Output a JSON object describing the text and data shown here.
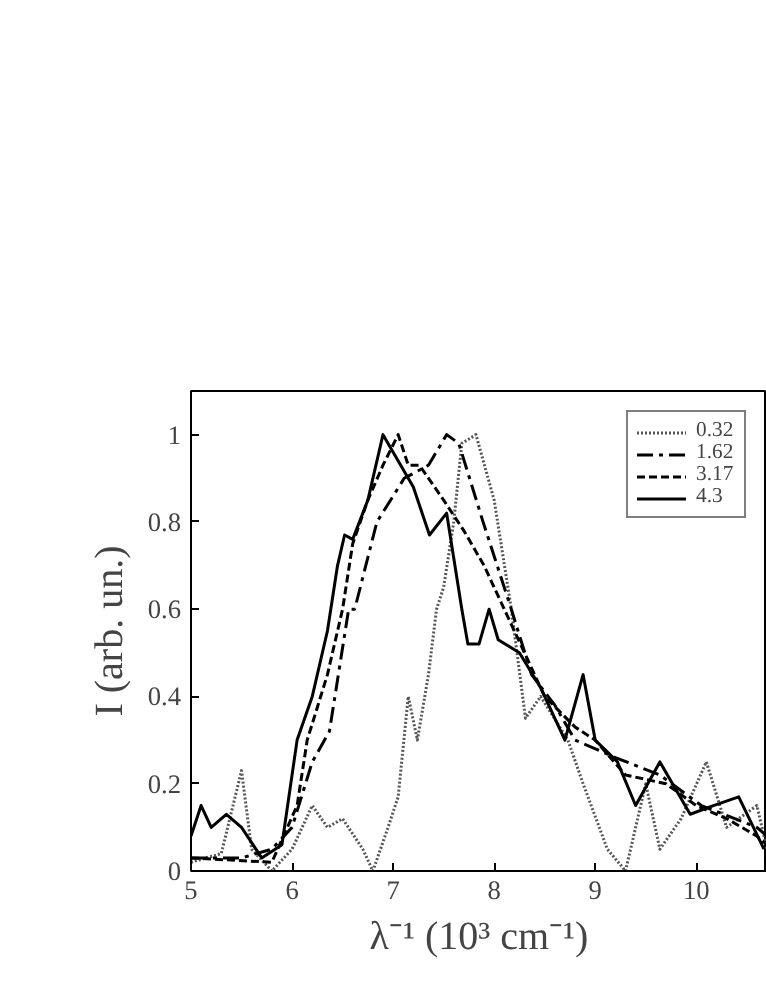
{
  "chart_data": {
    "type": "line",
    "xlabel": "λ⁻¹ (10³ cm⁻¹)",
    "ylabel": "I (arb. un.)",
    "xlim": [
      5,
      10.7
    ],
    "xticks": [
      5,
      6,
      7,
      8,
      9,
      10
    ],
    "ylim": [
      0,
      1.1
    ],
    "yticks": [
      0,
      0.2,
      0.4,
      0.6,
      0.8,
      1
    ],
    "grid": false,
    "legend": "top right",
    "marker": "none",
    "series": [
      {
        "name": "0.32",
        "color": "#555555",
        "line_style": "dotted",
        "x": [
          5,
          5.3,
          5.5,
          5.6,
          5.8,
          6.0,
          6.2,
          6.35,
          6.5,
          6.7,
          6.8,
          6.95,
          7.05,
          7.15,
          7.24,
          7.35,
          7.43,
          7.5,
          7.6,
          7.68,
          7.82,
          8.0,
          8.17,
          8.31,
          8.46,
          8.73,
          8.88,
          9.12,
          9.3,
          9.5,
          9.64,
          9.85,
          10.1,
          10.3,
          10.6,
          10.7
        ],
        "values": [
          0.02,
          0.04,
          0.23,
          0.05,
          0.0,
          0.05,
          0.15,
          0.1,
          0.12,
          0.05,
          0.0,
          0.1,
          0.17,
          0.4,
          0.3,
          0.45,
          0.6,
          0.65,
          0.8,
          0.98,
          1.0,
          0.85,
          0.6,
          0.35,
          0.4,
          0.3,
          0.2,
          0.05,
          0.0,
          0.2,
          0.05,
          0.12,
          0.25,
          0.1,
          0.15,
          0.05
        ]
      },
      {
        "name": "1.62",
        "color": "#000000",
        "line_style": "dashdot",
        "x": [
          5,
          5.5,
          5.8,
          6.0,
          6.2,
          6.37,
          6.56,
          6.62,
          6.84,
          7.11,
          7.35,
          7.53,
          7.65,
          7.89,
          8.17,
          8.37,
          8.6,
          8.8,
          9.2,
          9.64,
          10.05,
          10.6,
          10.7
        ],
        "values": [
          0.03,
          0.03,
          0.05,
          0.1,
          0.25,
          0.32,
          0.6,
          0.6,
          0.8,
          0.9,
          0.93,
          1.0,
          0.98,
          0.8,
          0.6,
          0.45,
          0.38,
          0.3,
          0.26,
          0.22,
          0.15,
          0.1,
          0.08
        ]
      },
      {
        "name": "3.17",
        "color": "#000000",
        "line_style": "dashed",
        "x": [
          5,
          5.8,
          6.05,
          6.15,
          6.35,
          6.5,
          6.6,
          6.75,
          6.9,
          7.05,
          7.15,
          7.26,
          7.5,
          7.7,
          7.9,
          8.1,
          8.3,
          8.5,
          8.8,
          9.0,
          9.3,
          9.7,
          10.0,
          10.3,
          10.6,
          10.7
        ],
        "values": [
          0.03,
          0.02,
          0.15,
          0.3,
          0.45,
          0.6,
          0.75,
          0.85,
          0.93,
          1.0,
          0.93,
          0.93,
          0.85,
          0.78,
          0.7,
          0.6,
          0.5,
          0.4,
          0.33,
          0.3,
          0.22,
          0.2,
          0.15,
          0.12,
          0.08,
          0.06
        ]
      },
      {
        "name": "4.3",
        "color": "#000000",
        "line_style": "solid",
        "x": [
          5,
          5.1,
          5.2,
          5.35,
          5.5,
          5.7,
          5.9,
          6.05,
          6.2,
          6.35,
          6.45,
          6.52,
          6.6,
          6.75,
          6.9,
          7.2,
          7.36,
          7.53,
          7.68,
          7.74,
          7.85,
          7.95,
          8.04,
          8.25,
          8.46,
          8.7,
          8.88,
          9.0,
          9.22,
          9.4,
          9.64,
          9.94,
          10.17,
          10.42,
          10.67
        ],
        "values": [
          0.08,
          0.15,
          0.1,
          0.13,
          0.1,
          0.03,
          0.06,
          0.3,
          0.4,
          0.55,
          0.7,
          0.77,
          0.76,
          0.85,
          1.0,
          0.88,
          0.77,
          0.82,
          0.6,
          0.52,
          0.52,
          0.6,
          0.53,
          0.5,
          0.42,
          0.3,
          0.45,
          0.3,
          0.25,
          0.15,
          0.25,
          0.13,
          0.15,
          0.17,
          0.05
        ]
      }
    ]
  }
}
